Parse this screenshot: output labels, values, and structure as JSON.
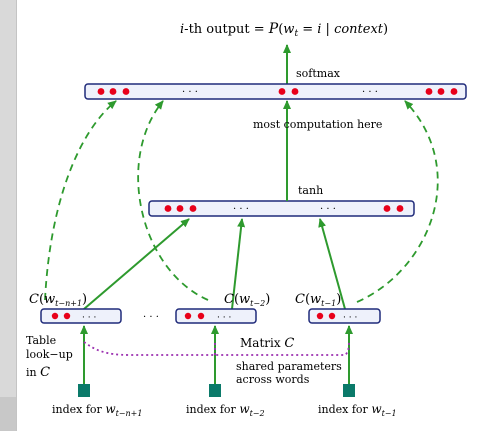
{
  "title": {
    "prefix": "i",
    "rest": "-th output = ",
    "formula_P": "P",
    "formula_open": "(",
    "formula_w": "w",
    "formula_sub": "t",
    "formula_eq": " = ",
    "formula_i": "i",
    "formula_bar": " | ",
    "formula_context": "context",
    "formula_close": ")"
  },
  "layers": {
    "softmax_label": "softmax",
    "softmax_ellipses": [
      "· · ·",
      "· · ·"
    ],
    "hidden_label": "tanh",
    "hidden_ellipses": [
      "· · ·",
      "· · ·"
    ],
    "computation_label": "most  computation here"
  },
  "embeddings": [
    {
      "C": "C",
      "open": "(",
      "w": "w",
      "sub": "t−n+1",
      "close": ")",
      "ellipsis": "· · ·"
    },
    {
      "C": "C",
      "open": "(",
      "w": "w",
      "sub": "t−2",
      "close": ")",
      "ellipsis": "· · ·"
    },
    {
      "C": "C",
      "open": "(",
      "w": "w",
      "sub": "t−1",
      "close": ")",
      "ellipsis": "· · ·"
    }
  ],
  "between_embeddings_ellipsis": "· · ·",
  "table_lookup": {
    "line1": "Table",
    "line2": "look−up",
    "line3_in": "in ",
    "line3_C": "C"
  },
  "matrix_label": {
    "prefix": "Matrix ",
    "C": "C"
  },
  "shared_label": {
    "line1": "shared parameters",
    "line2": "across words"
  },
  "inputs": [
    {
      "text": "index for ",
      "w": "w",
      "sub": "t−n+1"
    },
    {
      "text": "index for ",
      "w": "w",
      "sub": "t−2"
    },
    {
      "text": "index for ",
      "w": "w",
      "sub": "t−1"
    }
  ],
  "colors": {
    "layer_fill": "#eef1fb",
    "layer_stroke": "#1f2a7a",
    "unit": "#e8001a",
    "arrow": "#2e9a2e",
    "dashed": "#2e9a2e",
    "shared": "#9b2fb0",
    "input_block": "#0b7a6a"
  }
}
